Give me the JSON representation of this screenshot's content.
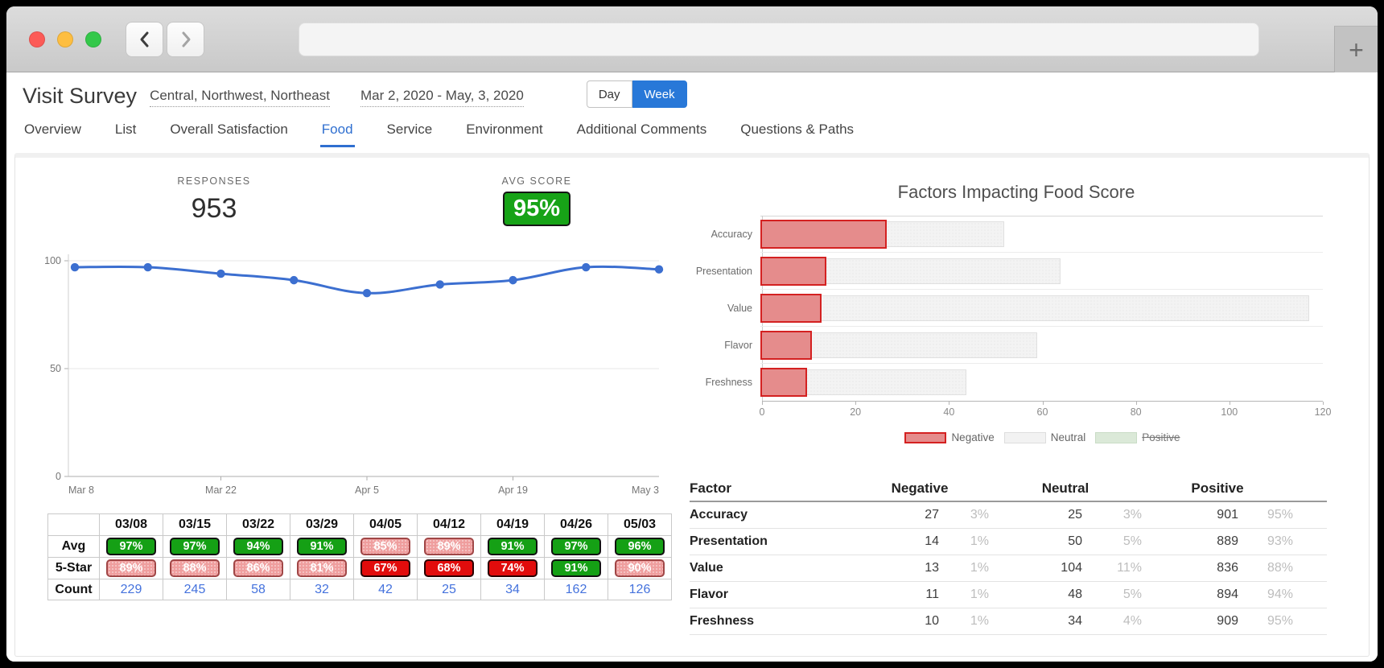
{
  "browser": {
    "address_bar_value": "",
    "new_tab_glyph": "+"
  },
  "header": {
    "title": "Visit Survey",
    "region_filter": "Central, Northwest, Northeast",
    "date_range": "Mar 2, 2020 - May, 3, 2020",
    "granularity": {
      "options": [
        "Day",
        "Week"
      ],
      "active": "Week"
    }
  },
  "tabs": {
    "items": [
      "Overview",
      "List",
      "Overall Satisfaction",
      "Food",
      "Service",
      "Environment",
      "Additional Comments",
      "Questions & Paths"
    ],
    "active": "Food"
  },
  "kpis": {
    "responses": {
      "label": "RESPONSES",
      "value": "953"
    },
    "avg_score": {
      "label": "AVG SCORE",
      "value": "95%",
      "color": "#17a317"
    }
  },
  "chart_data": [
    {
      "type": "line",
      "title": "",
      "x": [
        "03/08",
        "03/15",
        "03/22",
        "03/29",
        "04/05",
        "04/12",
        "04/19",
        "04/26",
        "05/03"
      ],
      "values": [
        97,
        97,
        94,
        91,
        85,
        89,
        91,
        97,
        96
      ],
      "ylabel": "",
      "xlabel": "",
      "ylim": [
        0,
        100
      ],
      "yticks": [
        0,
        50,
        100
      ],
      "xtick_labels": [
        "Mar 8",
        "Mar 22",
        "Apr 5",
        "Apr 19",
        "May 3"
      ],
      "xtick_indices": [
        0,
        2,
        4,
        6,
        8
      ],
      "line_color": "#3c6fd0",
      "grid": true,
      "legend_position": "none"
    },
    {
      "type": "bar",
      "orientation": "horizontal",
      "stacked": true,
      "title": "Factors Impacting Food Score",
      "categories": [
        "Accuracy",
        "Presentation",
        "Value",
        "Flavor",
        "Freshness"
      ],
      "series": [
        {
          "name": "Negative",
          "values": [
            27,
            14,
            13,
            11,
            10
          ]
        },
        {
          "name": "Neutral",
          "values": [
            25,
            50,
            104,
            48,
            34
          ]
        }
      ],
      "xlim": [
        0,
        120
      ],
      "xticks": [
        0,
        20,
        40,
        60,
        80,
        100,
        120
      ],
      "grid": false,
      "legend_position": "bottom",
      "legend": [
        {
          "label": "Negative",
          "swatch": "negative",
          "struck": false
        },
        {
          "label": "Neutral",
          "swatch": "neutral",
          "struck": false
        },
        {
          "label": "Positive",
          "swatch": "positive",
          "struck": true
        }
      ]
    }
  ],
  "weekly_table": {
    "dates": [
      "03/08",
      "03/15",
      "03/22",
      "03/29",
      "04/05",
      "04/12",
      "04/19",
      "04/26",
      "05/03"
    ],
    "row_labels": [
      "Avg",
      "5-Star",
      "Count"
    ],
    "avg": [
      {
        "v": "97%",
        "s": "green"
      },
      {
        "v": "97%",
        "s": "green"
      },
      {
        "v": "94%",
        "s": "green"
      },
      {
        "v": "91%",
        "s": "green"
      },
      {
        "v": "85%",
        "s": "pink"
      },
      {
        "v": "89%",
        "s": "pink"
      },
      {
        "v": "91%",
        "s": "green"
      },
      {
        "v": "97%",
        "s": "green"
      },
      {
        "v": "96%",
        "s": "green"
      }
    ],
    "five_star": [
      {
        "v": "89%",
        "s": "pink"
      },
      {
        "v": "88%",
        "s": "pink"
      },
      {
        "v": "86%",
        "s": "pink"
      },
      {
        "v": "81%",
        "s": "pink"
      },
      {
        "v": "67%",
        "s": "red"
      },
      {
        "v": "68%",
        "s": "red"
      },
      {
        "v": "74%",
        "s": "red"
      },
      {
        "v": "91%",
        "s": "green"
      },
      {
        "v": "90%",
        "s": "pink"
      }
    ],
    "count": [
      "229",
      "245",
      "58",
      "32",
      "42",
      "25",
      "34",
      "162",
      "126"
    ]
  },
  "factors_table": {
    "headers": [
      "Factor",
      "Negative",
      "Neutral",
      "Positive"
    ],
    "rows": [
      {
        "factor": "Accuracy",
        "negative": {
          "count": "27",
          "pct": "3%"
        },
        "neutral": {
          "count": "25",
          "pct": "3%"
        },
        "positive": {
          "count": "901",
          "pct": "95%"
        }
      },
      {
        "factor": "Presentation",
        "negative": {
          "count": "14",
          "pct": "1%"
        },
        "neutral": {
          "count": "50",
          "pct": "5%"
        },
        "positive": {
          "count": "889",
          "pct": "93%"
        }
      },
      {
        "factor": "Value",
        "negative": {
          "count": "13",
          "pct": "1%"
        },
        "neutral": {
          "count": "104",
          "pct": "11%"
        },
        "positive": {
          "count": "836",
          "pct": "88%"
        }
      },
      {
        "factor": "Flavor",
        "negative": {
          "count": "11",
          "pct": "1%"
        },
        "neutral": {
          "count": "48",
          "pct": "5%"
        },
        "positive": {
          "count": "894",
          "pct": "94%"
        }
      },
      {
        "factor": "Freshness",
        "negative": {
          "count": "10",
          "pct": "1%"
        },
        "neutral": {
          "count": "34",
          "pct": "4%"
        },
        "positive": {
          "count": "909",
          "pct": "95%"
        }
      }
    ]
  },
  "colors": {
    "accent_blue": "#2f6fd0",
    "week_button": "#2878d8",
    "line": "#3c6fd0",
    "badge_green": "#15a015",
    "badge_pink": "#ef9e9e",
    "badge_red": "#e20c0c",
    "bar_negative_fill": "#e58c8c",
    "bar_negative_border": "#d42121",
    "bar_neutral_fill": "#f3f3f3",
    "positive_swatch": "#dbe9d8",
    "count_link": "#4472dd"
  }
}
